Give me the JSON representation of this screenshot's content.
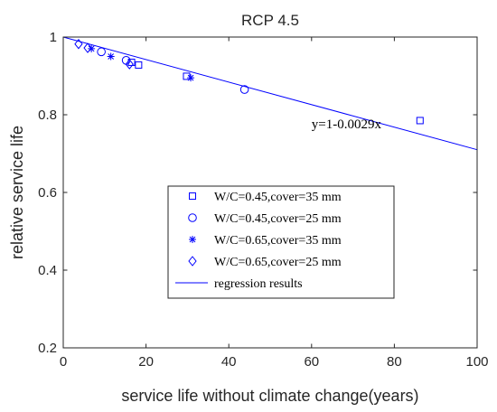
{
  "chart_data": {
    "type": "scatter",
    "title": "RCP 4.5",
    "xlabel": "service life without climate change(years)",
    "ylabel": "relative service life",
    "xlim": [
      0,
      100
    ],
    "ylim": [
      0.2,
      1
    ],
    "xticks": [
      0,
      20,
      40,
      60,
      80,
      100
    ],
    "yticks": [
      0.2,
      0.4,
      0.6,
      0.8,
      1
    ],
    "xtick_labels": [
      "0",
      "20",
      "40",
      "60",
      "80",
      "100"
    ],
    "ytick_labels": [
      "0.2",
      "0.4",
      "0.6",
      "0.8",
      "1"
    ],
    "grid": false,
    "legend_position": "center",
    "series": [
      {
        "name": "W/C=0.45,cover=35 mm",
        "marker": "square",
        "x": [
          16.5,
          18.2,
          29.8,
          86.2
        ],
        "y": [
          0.935,
          0.928,
          0.899,
          0.785
        ]
      },
      {
        "name": "W/C=0.45,cover=25 mm",
        "marker": "circle",
        "x": [
          9.2,
          15.2,
          43.8
        ],
        "y": [
          0.962,
          0.94,
          0.865
        ]
      },
      {
        "name": "W/C=0.65,cover=35 mm",
        "marker": "asterisk",
        "x": [
          6.8,
          11.5,
          30.8
        ],
        "y": [
          0.97,
          0.95,
          0.895
        ]
      },
      {
        "name": "W/C=0.65,cover=25 mm",
        "marker": "diamond",
        "x": [
          3.7,
          5.9,
          16.0
        ],
        "y": [
          0.982,
          0.972,
          0.93
        ]
      }
    ],
    "regression": {
      "name": "regression results",
      "intercept": 1,
      "slope": -0.0029,
      "equation_label": "y=1-0.0029x",
      "annotation_x": 60,
      "annotation_y": 0.765
    },
    "color": "#0000ff"
  }
}
